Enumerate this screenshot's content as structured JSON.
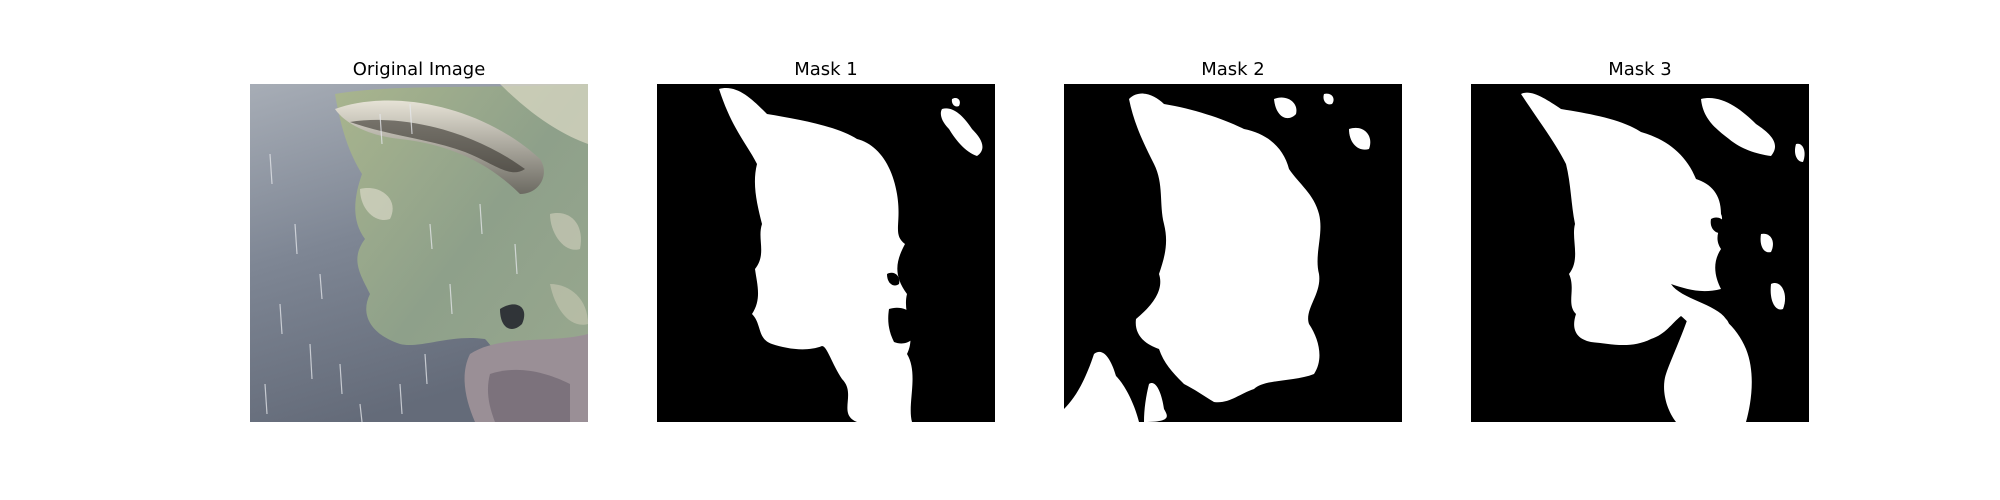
{
  "panels": [
    {
      "title": "Original Image"
    },
    {
      "title": "Mask 1"
    },
    {
      "title": "Mask 2"
    },
    {
      "title": "Mask 3"
    }
  ],
  "colors": {
    "background": "#ffffff",
    "mask_background": "#000000",
    "mask_foreground": "#ffffff",
    "water": "#7f8794",
    "leaf": "#8a9f7a"
  }
}
